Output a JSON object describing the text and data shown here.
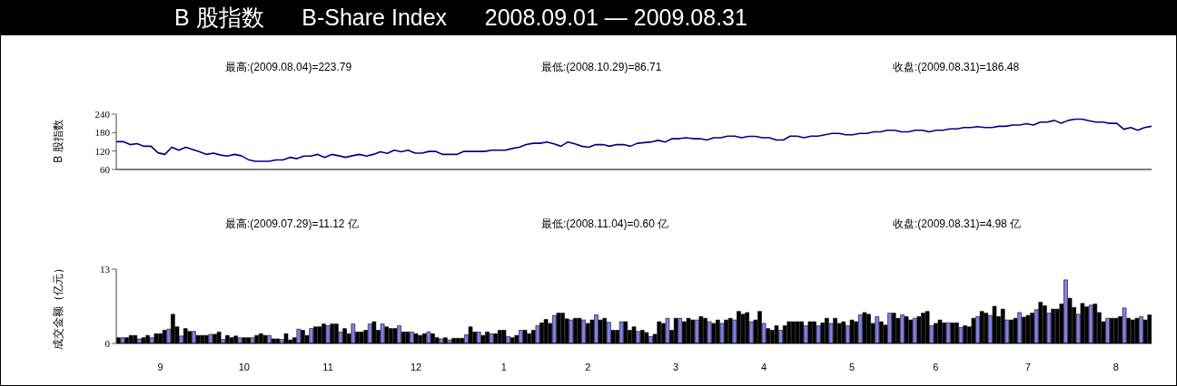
{
  "chart_data": [
    {
      "type": "line",
      "title": "B 股指数      B-Share Index      2008.09.01 — 2009.08.31",
      "ylabel": "B 股指数",
      "annotations": [
        "最高:(2009.08.04)=223.79",
        "最低:(2008.10.29)=86.71",
        "收盘:(2009.08.31)=186.48"
      ],
      "categories": [
        null,
        null,
        null,
        null,
        null,
        null,
        null,
        null,
        null,
        null,
        null,
        null,
        null,
        null,
        null,
        null,
        null,
        null,
        null,
        null,
        null,
        null,
        null,
        null,
        null,
        null,
        null,
        null,
        null,
        null,
        null,
        null,
        null,
        null,
        null,
        null,
        null,
        null,
        null,
        null,
        null,
        null,
        null,
        null,
        null,
        null,
        null,
        null,
        null,
        null,
        null,
        null,
        null,
        null,
        null,
        null,
        null,
        null,
        null,
        null,
        null,
        null,
        null,
        null,
        null,
        null,
        null,
        null,
        null,
        null,
        null,
        null,
        null,
        null,
        null,
        null,
        null,
        null,
        null,
        null,
        null,
        null,
        null,
        null,
        null,
        null,
        null,
        null,
        null,
        null,
        null,
        null,
        null,
        null,
        null,
        null,
        null,
        null,
        null,
        null,
        null,
        null,
        null,
        null,
        null,
        null,
        null,
        null,
        null,
        null,
        null,
        null,
        null,
        null,
        null,
        null,
        null,
        null,
        null,
        null,
        null,
        null,
        null,
        null,
        null,
        null,
        null,
        null,
        null,
        null,
        null,
        null,
        null,
        null,
        null,
        null,
        null,
        null,
        null,
        null,
        null,
        null,
        null,
        null,
        null,
        null,
        null,
        null,
        null,
        null
      ],
      "series": [
        {
          "color": "#000080",
          "values": [
            150.5,
            150.5,
            140.9,
            144.1,
            135.6,
            135.6,
            114.3,
            109.0,
            132.4,
            122.8,
            132.4,
            125.0,
            117.5,
            109.0,
            113.2,
            106.9,
            103.7,
            109.0,
            104.7,
            92.0,
            86.71,
            86.71,
            86.71,
            90.9,
            90.9,
            99.4,
            95.1,
            103.7,
            103.7,
            109.0,
            99.4,
            109.0,
            104.7,
            99.4,
            104.7,
            109.0,
            103.7,
            109.0,
            117.5,
            112.2,
            122.8,
            117.5,
            122.8,
            113.2,
            113.2,
            118.6,
            118.6,
            109.0,
            109.0,
            109.0,
            118.6,
            118.6,
            118.6,
            118.6,
            122.8,
            122.8,
            122.8,
            128.2,
            132.4,
            140.9,
            145.2,
            145.2,
            149.5,
            143.1,
            135.6,
            149.5,
            143.1,
            135.6,
            132.4,
            140.9,
            140.9,
            135.6,
            140.9,
            140.9,
            135.6,
            145.2,
            147.3,
            149.5,
            154.8,
            149.5,
            160.1,
            160.1,
            163.3,
            160.1,
            160.1,
            155.8,
            163.3,
            163.3,
            168.6,
            168.6,
            163.3,
            167.6,
            167.6,
            163.3,
            163.3,
            155.8,
            155.8,
            168.6,
            168.6,
            163.3,
            168.6,
            168.6,
            172.9,
            177.1,
            177.1,
            172.9,
            172.9,
            177.1,
            177.1,
            182.5,
            182.5,
            187.8,
            187.8,
            182.5,
            182.5,
            187.8,
            187.8,
            182.5,
            187.8,
            187.8,
            192.1,
            192.1,
            196.3,
            196.3,
            199.5,
            196.3,
            196.3,
            200.6,
            200.6,
            204.8,
            204.8,
            209.1,
            204.8,
            214.4,
            214.4,
            219.7,
            210.2,
            219.7,
            223.79,
            223.79,
            218.7,
            214.4,
            214.4,
            210.2,
            210.2,
            191.0,
            196.3,
            187.8,
            196.3,
            200.6
          ]
        }
      ],
      "ylim": [
        60,
        240
      ],
      "yticks": [
        60,
        120,
        180,
        240
      ],
      "tick_labels": "y",
      "marker": "none"
    },
    {
      "type": "bar",
      "ylabel": "成交金额（亿元）",
      "annotations": [
        "最高:(2009.07.29)=11.12 亿",
        "最低:(2008.11.04)=0.60 亿",
        "收盘:(2009.08.31)=4.98 亿"
      ],
      "categories": [
        null,
        null,
        null,
        null,
        null,
        null,
        null,
        null,
        null,
        null,
        "9",
        null,
        null,
        null,
        null,
        null,
        null,
        null,
        null,
        null,
        null,
        null,
        null,
        null,
        null,
        null,
        null,
        null,
        null,
        null,
        "10",
        null,
        null,
        null,
        null,
        null,
        null,
        null,
        null,
        null,
        null,
        null,
        null,
        null,
        null,
        null,
        null,
        null,
        null,
        null,
        "11",
        null,
        null,
        null,
        null,
        null,
        null,
        null,
        null,
        null,
        null,
        null,
        null,
        null,
        null,
        null,
        null,
        null,
        null,
        null,
        null,
        "12",
        null,
        null,
        null,
        null,
        null,
        null,
        null,
        null,
        null,
        null,
        null,
        null,
        null,
        null,
        null,
        null,
        null,
        null,
        null,
        null,
        "1",
        null,
        null,
        null,
        null,
        null,
        null,
        null,
        null,
        null,
        null,
        null,
        null,
        null,
        null,
        null,
        null,
        null,
        null,
        null,
        "2",
        null,
        null,
        null,
        null,
        null,
        null,
        null,
        null,
        null,
        null,
        null,
        null,
        null,
        null,
        null,
        null,
        null,
        null,
        null,
        null,
        "3",
        null,
        null,
        null,
        null,
        null,
        null,
        null,
        null,
        null,
        null,
        null,
        null,
        null,
        null,
        null,
        null,
        null,
        null,
        null,
        null,
        "4",
        null,
        null,
        null,
        null,
        null,
        null,
        null,
        null,
        null,
        null,
        null,
        null,
        null,
        null,
        null,
        null,
        null,
        null,
        null,
        null,
        "5",
        null,
        null,
        null,
        null,
        null,
        null,
        null,
        null,
        null,
        null,
        null,
        null,
        null,
        null,
        null,
        null,
        null,
        null,
        null,
        "6",
        null,
        null,
        null,
        null,
        null,
        null,
        null,
        null,
        null,
        null,
        null,
        null,
        null,
        null,
        null,
        null,
        null,
        null,
        null,
        null,
        null,
        "7",
        null,
        null,
        null,
        null,
        null,
        null,
        null,
        null,
        null,
        null,
        null,
        null,
        null,
        null,
        null,
        null,
        null,
        null,
        null,
        null,
        "8",
        null,
        null,
        null,
        null,
        null,
        null,
        null,
        null
      ],
      "values": [
        1.0,
        1.0,
        1.0,
        1.4,
        1.4,
        0.8,
        1.0,
        1.4,
        1.0,
        1.7,
        1.7,
        2.3,
        2.5,
        5.1,
        2.9,
        1.3,
        2.6,
        2.1,
        2.1,
        1.4,
        1.4,
        1.4,
        1.6,
        1.6,
        2.0,
        0.7,
        1.4,
        1.0,
        1.3,
        1.0,
        1.0,
        1.0,
        1.0,
        1.4,
        1.7,
        1.4,
        1.4,
        0.8,
        0.8,
        0.7,
        1.7,
        0.6,
        1.0,
        2.5,
        2.3,
        1.4,
        2.6,
        2.9,
        2.9,
        3.4,
        3.1,
        3.4,
        3.4,
        2.0,
        2.6,
        1.7,
        3.4,
        2.0,
        2.0,
        2.3,
        3.4,
        3.8,
        2.3,
        3.4,
        2.9,
        2.6,
        2.6,
        3.1,
        2.0,
        2.0,
        2.0,
        1.7,
        1.4,
        1.7,
        2.0,
        1.7,
        1.0,
        0.8,
        1.0,
        0.6,
        0.9,
        0.9,
        0.9,
        1.5,
        2.9,
        2.0,
        2.0,
        1.4,
        2.0,
        1.7,
        1.7,
        2.3,
        2.3,
        1.2,
        1.0,
        1.4,
        2.3,
        2.3,
        1.7,
        2.3,
        3.1,
        3.6,
        4.2,
        3.5,
        4.9,
        5.3,
        5.3,
        4.3,
        4.1,
        4.4,
        4.4,
        4.1,
        3.5,
        4.1,
        5.0,
        4.1,
        4.4,
        3.7,
        2.3,
        2.3,
        3.8,
        3.8,
        2.3,
        2.9,
        2.1,
        2.3,
        1.9,
        1.2,
        1.6,
        3.8,
        3.5,
        4.4,
        2.3,
        4.4,
        4.4,
        3.8,
        4.4,
        4.1,
        4.1,
        4.7,
        4.4,
        3.8,
        3.5,
        4.1,
        3.5,
        4.1,
        4.4,
        4.1,
        5.6,
        5.1,
        5.4,
        3.8,
        4.1,
        5.6,
        3.5,
        2.6,
        2.3,
        3.1,
        2.3,
        3.1,
        3.8,
        3.8,
        3.8,
        3.8,
        3.1,
        3.8,
        3.8,
        3.1,
        3.6,
        4.4,
        3.5,
        4.4,
        3.5,
        3.8,
        3.1,
        4.1,
        3.8,
        5.0,
        5.4,
        5.1,
        3.5,
        4.7,
        3.8,
        3.2,
        5.3,
        5.3,
        4.4,
        5.0,
        4.7,
        4.1,
        4.4,
        4.7,
        5.3,
        5.6,
        3.1,
        3.5,
        4.1,
        3.6,
        3.6,
        3.6,
        3.6,
        2.8,
        3.1,
        2.9,
        4.4,
        4.7,
        5.6,
        5.3,
        4.9,
        6.5,
        4.7,
        6.0,
        4.1,
        4.1,
        4.4,
        5.4,
        4.6,
        4.9,
        5.3,
        5.9,
        7.2,
        6.6,
        5.3,
        6.0,
        6.0,
        6.9,
        11.12,
        7.9,
        6.3,
        5.1,
        7.0,
        6.4,
        6.7,
        6.9,
        5.4,
        3.8,
        4.4,
        4.4,
        4.4,
        4.7,
        6.2,
        4.4,
        4.1,
        4.4,
        4.7,
        4.1,
        4.98
      ],
      "colors": [
        "#000000",
        "#8080ee",
        "#000000",
        "#000000",
        "#000000",
        "#8080ee",
        "#000000",
        "#000000",
        "#8080ee",
        "#000000",
        "#000000",
        "#000000",
        "#8080ee",
        "#000000",
        "#000000",
        "#8080ee",
        "#000000",
        "#000000",
        "#8080ee",
        "#000000",
        "#000000",
        "#000000",
        "#8080ee",
        "#000000",
        "#000000",
        "#8080ee",
        "#000000",
        "#000000",
        "#000000",
        "#8080ee",
        "#000000",
        "#000000",
        "#8080ee",
        "#000000",
        "#000000",
        "#000000",
        "#8080ee",
        "#000000",
        "#000000",
        "#8080ee",
        "#000000",
        "#000000",
        "#000000",
        "#8080ee",
        "#000000",
        "#000000",
        "#8080ee",
        "#000000",
        "#000000",
        "#000000",
        "#8080ee",
        "#000000",
        "#000000",
        "#8080ee",
        "#000000",
        "#000000",
        "#8080ee",
        "#000000",
        "#000000",
        "#000000",
        "#8080ee",
        "#000000",
        "#000000",
        "#8080ee",
        "#000000",
        "#000000",
        "#000000",
        "#8080ee",
        "#000000",
        "#000000",
        "#8080ee",
        "#000000",
        "#000000",
        "#000000",
        "#8080ee",
        "#000000",
        "#000000",
        "#8080ee",
        "#000000",
        "#8080ee",
        "#000000",
        "#000000",
        "#000000",
        "#8080ee",
        "#000000",
        "#000000",
        "#8080ee",
        "#000000",
        "#000000",
        "#8080ee",
        "#000000",
        "#000000",
        "#000000",
        "#8080ee",
        "#000000",
        "#000000",
        "#8080ee",
        "#000000",
        "#000000",
        "#000000",
        "#8080ee",
        "#000000",
        "#000000",
        "#000000",
        "#8080ee",
        "#000000",
        "#000000",
        "#000000",
        "#8080ee",
        "#000000",
        "#000000",
        "#8080ee",
        "#000000",
        "#000000",
        "#8080ee",
        "#000000",
        "#000000",
        "#8080ee",
        "#000000",
        "#000000",
        "#8080ee",
        "#000000",
        "#000000",
        "#000000",
        "#8080ee",
        "#000000",
        "#000000",
        "#8080ee",
        "#000000",
        "#000000",
        "#000000",
        "#8080ee",
        "#000000",
        "#000000",
        "#8080ee",
        "#000000",
        "#000000",
        "#000000",
        "#8080ee",
        "#000000",
        "#000000",
        "#8080ee",
        "#000000",
        "#000000",
        "#8080ee",
        "#000000",
        "#000000",
        "#8080ee",
        "#000000",
        "#000000",
        "#000000",
        "#8080ee",
        "#000000",
        "#000000",
        "#8080ee",
        "#000000",
        "#000000",
        "#000000",
        "#8080ee",
        "#000000",
        "#000000",
        "#000000",
        "#000000",
        "#000000",
        "#8080ee",
        "#000000",
        "#000000",
        "#8080ee",
        "#000000",
        "#000000",
        "#8080ee",
        "#000000",
        "#000000",
        "#000000",
        "#8080ee",
        "#000000",
        "#000000",
        "#8080ee",
        "#000000",
        "#000000",
        "#000000",
        "#8080ee",
        "#000000",
        "#000000",
        "#8080ee",
        "#000000",
        "#000000",
        "#8080ee",
        "#000000",
        "#000000",
        "#8080ee",
        "#000000",
        "#000000",
        "#000000",
        "#8080ee",
        "#000000",
        "#000000",
        "#000000",
        "#8080ee",
        "#000000",
        "#000000",
        "#8080ee",
        "#000000",
        "#000000",
        "#000000",
        "#8080ee",
        "#000000",
        "#000000",
        "#8080ee",
        "#000000",
        "#000000",
        "#000000",
        "#8080ee",
        "#000000",
        "#000000",
        "#8080ee",
        "#000000",
        "#000000",
        "#000000",
        "#8080ee",
        "#000000",
        "#000000",
        "#8080ee",
        "#000000",
        "#000000",
        "#000000",
        "#8080ee",
        "#000000",
        "#000000",
        "#8080ee",
        "#000000",
        "#000000",
        "#8080ee",
        "#000000",
        "#000000",
        "#000000",
        "#8080ee",
        "#000000",
        "#000000",
        "#000000",
        "#8080ee",
        "#000000",
        "#000000",
        "#000000",
        "#8080ee",
        "#000000",
        "#000000"
      ],
      "ylim": [
        0,
        13
      ],
      "yticks": [
        0,
        13
      ]
    }
  ]
}
